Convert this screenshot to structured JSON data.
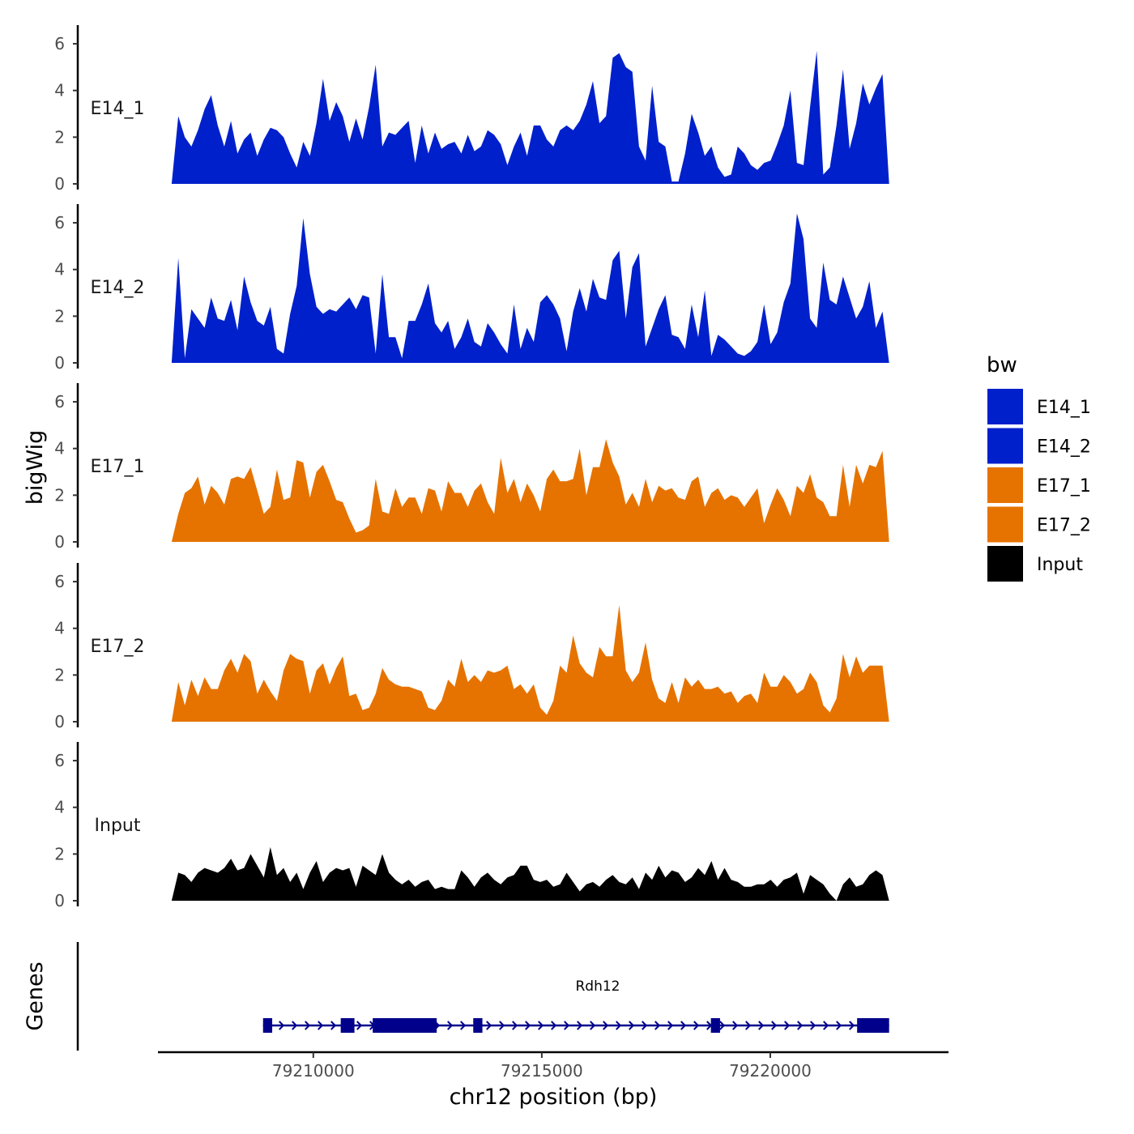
{
  "chart_data": {
    "type": "area",
    "y_axis_title": "bigWig",
    "x_axis_title": "chr12 position (bp)",
    "genes_axis_title": "Genes",
    "ylim": [
      0,
      6.8
    ],
    "y_ticks": [
      0,
      2,
      4,
      6
    ],
    "xlim": [
      79206600,
      79223900
    ],
    "x_ticks": [
      79210000,
      79215000,
      79220000
    ],
    "x_tick_labels": [
      "79210000",
      "79215000",
      "79220000"
    ],
    "data_range": [
      79206900,
      79222600
    ],
    "legend": {
      "title": "bw",
      "entries": [
        {
          "label": "E14_1",
          "color": "#0020CC"
        },
        {
          "label": "E14_2",
          "color": "#0020CC"
        },
        {
          "label": "E17_1",
          "color": "#E67300"
        },
        {
          "label": "E17_2",
          "color": "#E67300"
        },
        {
          "label": "Input",
          "color": "#000000"
        }
      ]
    },
    "series": [
      {
        "name": "E14_1",
        "color": "#0020CC",
        "values": [
          0,
          2.9,
          2,
          1.6,
          2.3,
          3.2,
          3.8,
          2.5,
          1.6,
          2.7,
          1.3,
          1.9,
          2.2,
          1.2,
          1.9,
          2.4,
          2.3,
          2,
          1.3,
          0.7,
          1.8,
          1.2,
          2.6,
          4.5,
          2.7,
          3.5,
          2.9,
          1.8,
          2.8,
          1.9,
          3.3,
          5.1,
          1.6,
          2.2,
          2.1,
          2.4,
          2.7,
          0.9,
          2.5,
          1.3,
          2.2,
          1.5,
          1.7,
          1.8,
          1.3,
          2.1,
          1.4,
          1.6,
          2.3,
          2.1,
          1.7,
          0.8,
          1.6,
          2.2,
          1.2,
          2.5,
          2.5,
          1.9,
          1.6,
          2.3,
          2.5,
          2.3,
          2.7,
          3.4,
          4.4,
          2.6,
          2.9,
          5.4,
          5.6,
          5,
          4.8,
          1.6,
          1,
          4.2,
          1.8,
          1.6,
          0.1,
          0.1,
          1.3,
          3,
          2.2,
          1.2,
          1.6,
          0.7,
          0.3,
          0.4,
          1.6,
          1.3,
          0.8,
          0.6,
          0.9,
          1,
          1.7,
          2.5,
          4,
          0.9,
          0.8,
          3.3,
          5.7,
          0.4,
          0.7,
          2.5,
          4.9,
          1.5,
          2.6,
          4.3,
          3.4,
          4.1,
          4.7,
          0
        ]
      },
      {
        "name": "E14_2",
        "color": "#0020CC",
        "values": [
          0,
          4.5,
          0.2,
          2.3,
          1.9,
          1.5,
          2.8,
          1.9,
          1.8,
          2.7,
          1.4,
          3.7,
          2.6,
          1.8,
          1.6,
          2.4,
          0.6,
          0.4,
          2.1,
          3.3,
          6.2,
          3.8,
          2.4,
          2.1,
          2.3,
          2.2,
          2.5,
          2.8,
          2.3,
          2.9,
          2.8,
          0.4,
          3.8,
          1.1,
          1.1,
          0.2,
          1.8,
          1.8,
          2.5,
          3.4,
          1.7,
          1.3,
          1.8,
          0.6,
          1.1,
          1.9,
          0.9,
          0.7,
          1.7,
          1.3,
          0.8,
          0.4,
          2.5,
          0.6,
          1.5,
          0.9,
          2.6,
          2.9,
          2.5,
          1.9,
          0.5,
          2.2,
          3.2,
          2.2,
          3.6,
          2.8,
          2.7,
          4.4,
          4.8,
          1.9,
          4.1,
          4.7,
          0.7,
          1.5,
          2.3,
          2.9,
          1.2,
          1.1,
          0.6,
          2.5,
          1.1,
          3.1,
          0.3,
          1.2,
          1,
          0.7,
          0.4,
          0.3,
          0.5,
          0.9,
          2.5,
          0.8,
          1.3,
          2.6,
          3.4,
          6.4,
          5.3,
          1.9,
          1.5,
          4.3,
          2.7,
          2.5,
          3.7,
          2.8,
          1.9,
          2.4,
          3.5,
          1.5,
          2.2,
          0
        ]
      },
      {
        "name": "E17_1",
        "color": "#E67300",
        "values": [
          0,
          1.2,
          2.1,
          2.3,
          2.8,
          1.6,
          2.4,
          2.1,
          1.6,
          2.7,
          2.8,
          2.7,
          3.2,
          2.2,
          1.2,
          1.5,
          3.1,
          1.8,
          1.9,
          3.5,
          3.4,
          1.9,
          3,
          3.3,
          2.6,
          1.8,
          1.7,
          1,
          0.4,
          0.5,
          0.7,
          2.7,
          1.3,
          1.2,
          2.3,
          1.5,
          1.9,
          1.9,
          1.2,
          2.3,
          2.2,
          1.3,
          2.6,
          2.1,
          2.1,
          1.5,
          2.2,
          2.5,
          1.7,
          1.2,
          3.6,
          2.1,
          2.7,
          1.7,
          2.5,
          2,
          1.3,
          2.7,
          3.1,
          2.6,
          2.6,
          2.7,
          4,
          2,
          3.2,
          3.2,
          4.4,
          3.4,
          2.8,
          1.6,
          2.1,
          1.5,
          2.7,
          1.7,
          2.4,
          2.2,
          2.3,
          1.9,
          1.8,
          2.6,
          2.8,
          1.5,
          2.1,
          2.3,
          1.8,
          2,
          1.9,
          1.5,
          1.9,
          2.3,
          0.8,
          1.6,
          2.3,
          1.8,
          1.1,
          2.4,
          2.1,
          2.9,
          1.9,
          1.7,
          1.1,
          1.1,
          3.3,
          1.5,
          3.3,
          2.5,
          3.3,
          3.2,
          3.9,
          0
        ]
      },
      {
        "name": "E17_2",
        "color": "#E67300",
        "values": [
          0,
          1.7,
          0.7,
          1.8,
          1.1,
          1.9,
          1.4,
          1.4,
          2.2,
          2.7,
          2.1,
          2.9,
          2.6,
          1.2,
          1.8,
          1.3,
          0.9,
          2.2,
          2.9,
          2.7,
          2.6,
          1.2,
          2.2,
          2.5,
          1.6,
          2.3,
          2.8,
          1.1,
          1.2,
          0.5,
          0.6,
          1.2,
          2.3,
          1.8,
          1.6,
          1.5,
          1.5,
          1.4,
          1.3,
          0.6,
          0.5,
          0.9,
          1.8,
          1.5,
          2.7,
          1.7,
          2,
          1.7,
          2.2,
          2.1,
          2.2,
          2.4,
          1.4,
          1.6,
          1.2,
          1.6,
          0.6,
          0.3,
          0.9,
          2.4,
          2.1,
          3.7,
          2.5,
          2.1,
          1.9,
          3.2,
          2.8,
          2.8,
          5,
          2.2,
          1.7,
          2.1,
          3.4,
          1.8,
          1,
          0.8,
          1.7,
          0.8,
          1.9,
          1.5,
          1.8,
          1.4,
          1.4,
          1.5,
          1.2,
          1.3,
          0.8,
          1.1,
          1.2,
          0.8,
          2.1,
          1.5,
          1.5,
          2,
          1.7,
          1.2,
          1.4,
          2.1,
          1.7,
          0.7,
          0.4,
          1,
          2.9,
          1.9,
          2.8,
          2.1,
          2.4,
          2.4,
          2.4,
          0
        ]
      },
      {
        "name": "Input",
        "color": "#000000",
        "values": [
          0,
          1.2,
          1.1,
          0.8,
          1.2,
          1.4,
          1.3,
          1.2,
          1.4,
          1.8,
          1.3,
          1.4,
          2,
          1.5,
          1,
          2.3,
          1.1,
          1.4,
          0.8,
          1.2,
          0.5,
          1.2,
          1.7,
          0.8,
          1.2,
          1.4,
          1.3,
          1.4,
          0.6,
          1.5,
          1.3,
          1.1,
          2,
          1.2,
          0.9,
          0.7,
          0.9,
          0.6,
          0.8,
          0.9,
          0.5,
          0.6,
          0.5,
          0.5,
          1.3,
          1,
          0.6,
          1,
          1.2,
          0.9,
          0.7,
          1,
          1.1,
          1.5,
          1.5,
          0.9,
          0.8,
          0.9,
          0.6,
          0.7,
          1.2,
          0.8,
          0.4,
          0.7,
          0.8,
          0.6,
          0.9,
          1.1,
          0.8,
          0.7,
          1,
          0.5,
          1.2,
          0.9,
          1.5,
          1,
          1.3,
          1.2,
          0.8,
          1,
          1.4,
          1.1,
          1.7,
          0.9,
          1.4,
          0.9,
          0.8,
          0.6,
          0.6,
          0.7,
          0.7,
          0.9,
          0.6,
          0.9,
          1,
          1.2,
          0.3,
          1.1,
          0.9,
          0.7,
          0.3,
          0,
          0.7,
          1,
          0.6,
          0.7,
          1.1,
          1.3,
          1.1,
          0
        ]
      }
    ],
    "gene_track": {
      "gene_name": "Rdh12",
      "strand": "+",
      "color": "#00008B",
      "start": 79208900,
      "end": 79222600,
      "exons": [
        {
          "start": 79208900,
          "end": 79209100
        },
        {
          "start": 79210600,
          "end": 79210900
        },
        {
          "start": 79211300,
          "end": 79212700
        },
        {
          "start": 79213500,
          "end": 79213700
        },
        {
          "start": 79218700,
          "end": 79218900
        },
        {
          "start": 79221900,
          "end": 79222600
        }
      ]
    }
  }
}
